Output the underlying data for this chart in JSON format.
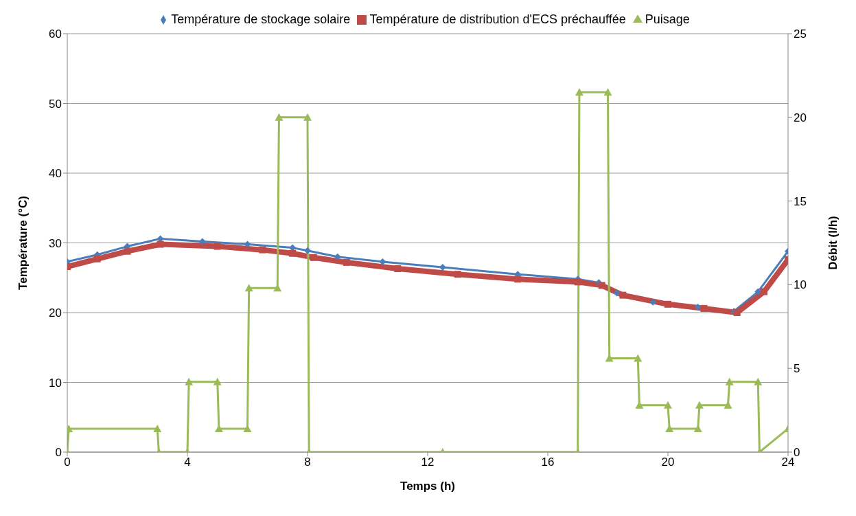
{
  "chart_data": {
    "type": "line",
    "xlabel": "Temps (h)",
    "ylabel": "Température (°C)",
    "y2label": "Débit (l/h)",
    "xlim": [
      0,
      24
    ],
    "xticks": [
      0,
      4,
      8,
      12,
      16,
      20,
      24
    ],
    "ylim": [
      0,
      60
    ],
    "yticks": [
      0,
      10,
      20,
      30,
      40,
      50,
      60
    ],
    "y2lim": [
      0,
      25
    ],
    "y2ticks": [
      0,
      5,
      10,
      15,
      20,
      25
    ],
    "grid": "y",
    "legend": "top",
    "series": [
      {
        "name": "Température de stockage solaire",
        "color": "#4a7ebb",
        "marker": "diamond",
        "x": [
          0,
          1,
          2,
          3.1,
          4.5,
          6,
          7.5,
          8,
          9,
          10.5,
          12.5,
          15,
          17,
          17.7,
          18.3,
          19.5,
          21,
          22.2,
          23,
          24
        ],
        "values": [
          27.3,
          28.3,
          29.5,
          30.6,
          30.2,
          29.8,
          29.3,
          28.9,
          28.0,
          27.3,
          26.5,
          25.5,
          24.8,
          24.3,
          22.8,
          21.5,
          20.8,
          20.2,
          23.0,
          28.8
        ]
      },
      {
        "name": "Température de distribution d'ECS préchauffée",
        "color": "#be4b48",
        "marker": "square",
        "x": [
          0,
          1,
          2,
          3.1,
          5,
          6.5,
          7.5,
          8.2,
          9.3,
          11,
          13,
          15,
          17,
          17.8,
          18.5,
          20,
          21.2,
          22.3,
          23.2,
          24
        ],
        "values": [
          26.6,
          27.7,
          28.8,
          29.8,
          29.5,
          29.0,
          28.5,
          27.9,
          27.2,
          26.3,
          25.5,
          24.8,
          24.4,
          23.9,
          22.5,
          21.2,
          20.6,
          20.0,
          23.0,
          27.6
        ]
      },
      {
        "name": "Puisage",
        "color": "#9bbb59",
        "marker": "triangle",
        "axis": "y2",
        "x": [
          0,
          0.05,
          3,
          3.05,
          4,
          4.05,
          5,
          5.05,
          6,
          6.05,
          7,
          7.05,
          8,
          8.05,
          12.5,
          17,
          17.05,
          18,
          18.05,
          19,
          19.05,
          20,
          20.05,
          21,
          21.05,
          22,
          22.05,
          23,
          23.05,
          24
        ],
        "values": [
          0,
          1.4,
          1.4,
          0,
          0,
          4.2,
          4.2,
          1.4,
          1.4,
          9.8,
          9.8,
          20,
          20,
          0,
          0,
          0,
          21.5,
          21.5,
          5.6,
          5.6,
          2.8,
          2.8,
          1.4,
          1.4,
          2.8,
          2.8,
          4.2,
          4.2,
          0,
          1.4
        ]
      }
    ]
  }
}
